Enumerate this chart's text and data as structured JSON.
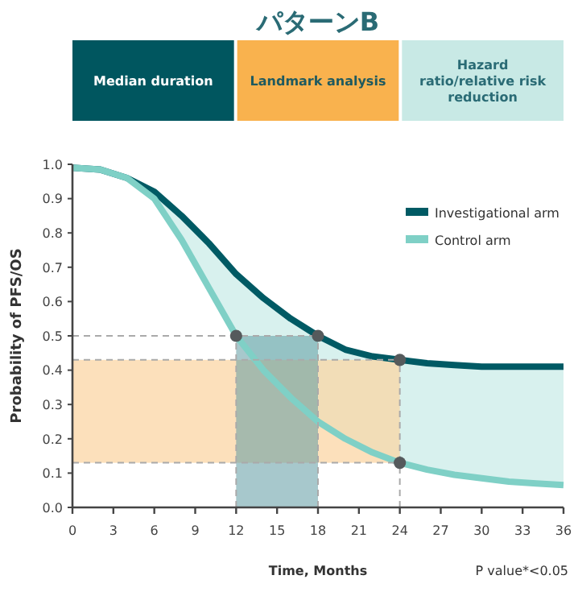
{
  "chart_data": {
    "type": "line",
    "title": "パターンB",
    "annotations": [
      "Median duration",
      "Landmark analysis",
      "Hazard ratio/relative risk reduction",
      "P value*<0.05"
    ],
    "xlabel": "Time, Months",
    "ylabel": "Probability of PFS/OS",
    "x": [
      0,
      2,
      4,
      6,
      8,
      10,
      12,
      14,
      16,
      18,
      20,
      22,
      24,
      26,
      28,
      30,
      32,
      34,
      36
    ],
    "series": [
      {
        "name": "Investigational arm",
        "color": "#005a64",
        "values": [
          0.99,
          0.985,
          0.96,
          0.92,
          0.85,
          0.77,
          0.68,
          0.61,
          0.55,
          0.5,
          0.46,
          0.44,
          0.43,
          0.42,
          0.415,
          0.41,
          0.41,
          0.41,
          0.41
        ],
        "lower": [
          0.99,
          0.985,
          0.96,
          0.9,
          0.78,
          0.64,
          0.5,
          0.4,
          0.32,
          0.25,
          0.2,
          0.16,
          0.13,
          0.11,
          0.095,
          0.085,
          0.075,
          0.07,
          0.065
        ],
        "upper": [
          0.99,
          0.985,
          0.96,
          0.92,
          0.85,
          0.77,
          0.68,
          0.61,
          0.55,
          0.5,
          0.46,
          0.44,
          0.43,
          0.42,
          0.415,
          0.41,
          0.41,
          0.41,
          0.41
        ]
      },
      {
        "name": "Control arm",
        "color": "#7fd0c6",
        "values": [
          0.99,
          0.985,
          0.96,
          0.9,
          0.78,
          0.64,
          0.5,
          0.4,
          0.32,
          0.25,
          0.2,
          0.16,
          0.13,
          0.11,
          0.095,
          0.085,
          0.075,
          0.07,
          0.065
        ]
      },
      {
        "type": "scatter",
        "color": "#555a5c",
        "marker": "circle",
        "x": [
          12,
          18,
          24,
          24
        ],
        "values": [
          0.5,
          0.5,
          0.43,
          0.13
        ]
      }
    ],
    "ref_lines": [
      {
        "axis": "y",
        "value": 0.5,
        "color": "#aaaaaa",
        "line_style": "dashed"
      },
      {
        "axis": "y",
        "value": 0.43,
        "color": "#aaaaaa",
        "line_style": "dashed"
      },
      {
        "axis": "y",
        "value": 0.13,
        "color": "#aaaaaa",
        "line_style": "dashed"
      },
      {
        "axis": "x",
        "value": 12,
        "color": "#aaaaaa",
        "line_style": "dashed"
      },
      {
        "axis": "x",
        "value": 18,
        "color": "#aaaaaa",
        "line_style": "dashed"
      },
      {
        "axis": "x",
        "value": 24,
        "color": "#aaaaaa",
        "line_style": "dashed"
      }
    ],
    "bands": [
      {
        "axis": "y",
        "from": 0.13,
        "to": 0.43,
        "color": "#fbd6a4"
      },
      {
        "axis": "x",
        "from": 12,
        "to": 18,
        "color": "#5f9aa3"
      }
    ],
    "xlim": [
      0,
      36
    ],
    "xticks": [
      0,
      3,
      6,
      9,
      12,
      15,
      18,
      21,
      24,
      27,
      30,
      33,
      36
    ],
    "ylim": [
      0,
      1
    ],
    "yticks": [
      {
        "value": 0,
        "label": "0.0"
      },
      {
        "value": 0.1,
        "label": "0.1"
      },
      {
        "value": 0.2,
        "label": "0.2"
      },
      {
        "value": 0.3,
        "label": "0.3"
      },
      {
        "value": 0.4,
        "label": "0.4"
      },
      {
        "value": 0.5,
        "label": "0.5"
      },
      {
        "value": 0.6,
        "label": "0.6"
      },
      {
        "value": 0.7,
        "label": "0.7"
      },
      {
        "value": 0.8,
        "label": "0.8"
      },
      {
        "value": 0.9,
        "label": "0.9"
      },
      {
        "value": 1,
        "label": "1.0"
      }
    ],
    "legend": "top right",
    "grid": false,
    "marker": "none",
    "line_style": "solid"
  }
}
